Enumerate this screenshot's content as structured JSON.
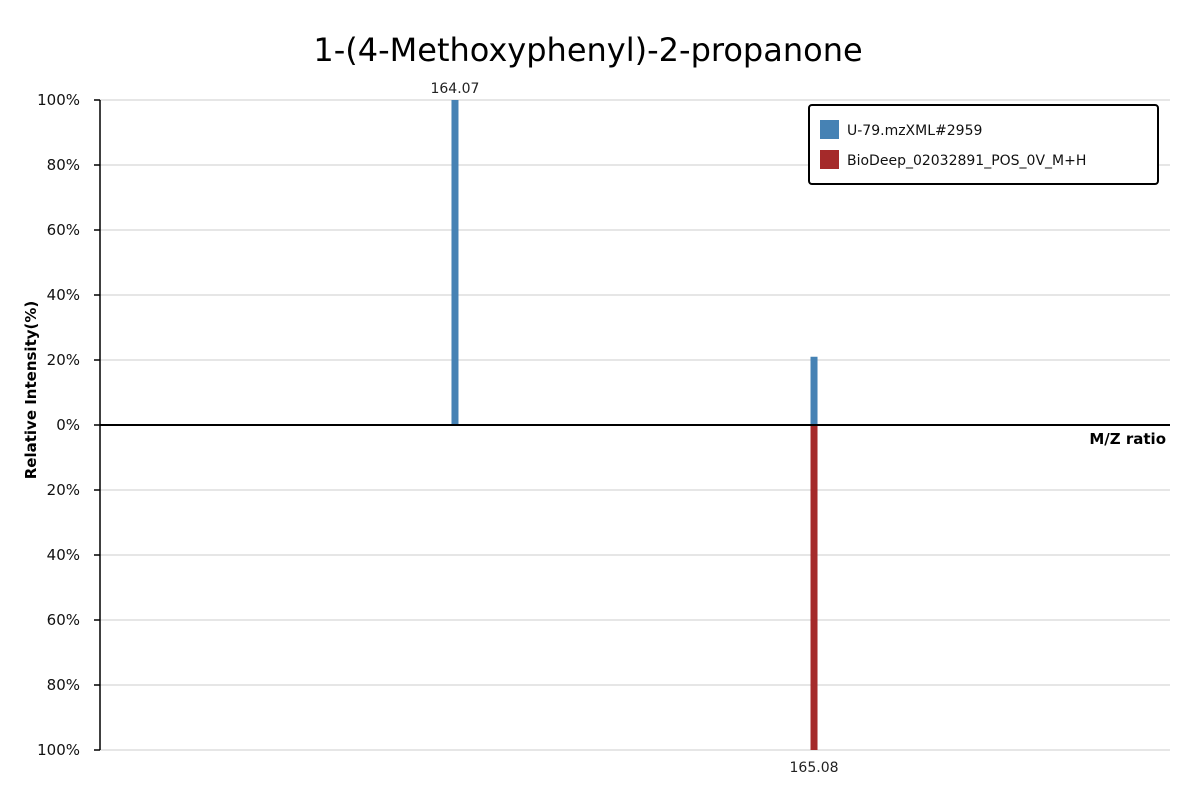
{
  "chart_data": {
    "type": "bar",
    "title": "1-(4-Methoxyphenyl)-2-propanone",
    "xlabel": "M/Z ratio",
    "ylabel": "Relative Intensity(%)",
    "y_ticks_upper": [
      "100%",
      "80%",
      "60%",
      "40%",
      "20%",
      "0%"
    ],
    "y_ticks_lower": [
      "20%",
      "40%",
      "60%",
      "80%",
      "100%"
    ],
    "ylim": [
      -100,
      100
    ],
    "grid": true,
    "legend_position": "top-right",
    "series": [
      {
        "name": "U-79.mzXML#2959",
        "color": "#4682b4",
        "direction": "up",
        "peaks": [
          {
            "mz": 164.07,
            "intensity": 100,
            "label": "164.07"
          },
          {
            "mz": 165.08,
            "intensity": 21
          }
        ]
      },
      {
        "name": "BioDeep_02032891_POS_0V_M+H",
        "color": "#a52a2a",
        "direction": "down",
        "peaks": [
          {
            "mz": 165.08,
            "intensity": 100,
            "label": "165.08"
          }
        ]
      }
    ]
  }
}
